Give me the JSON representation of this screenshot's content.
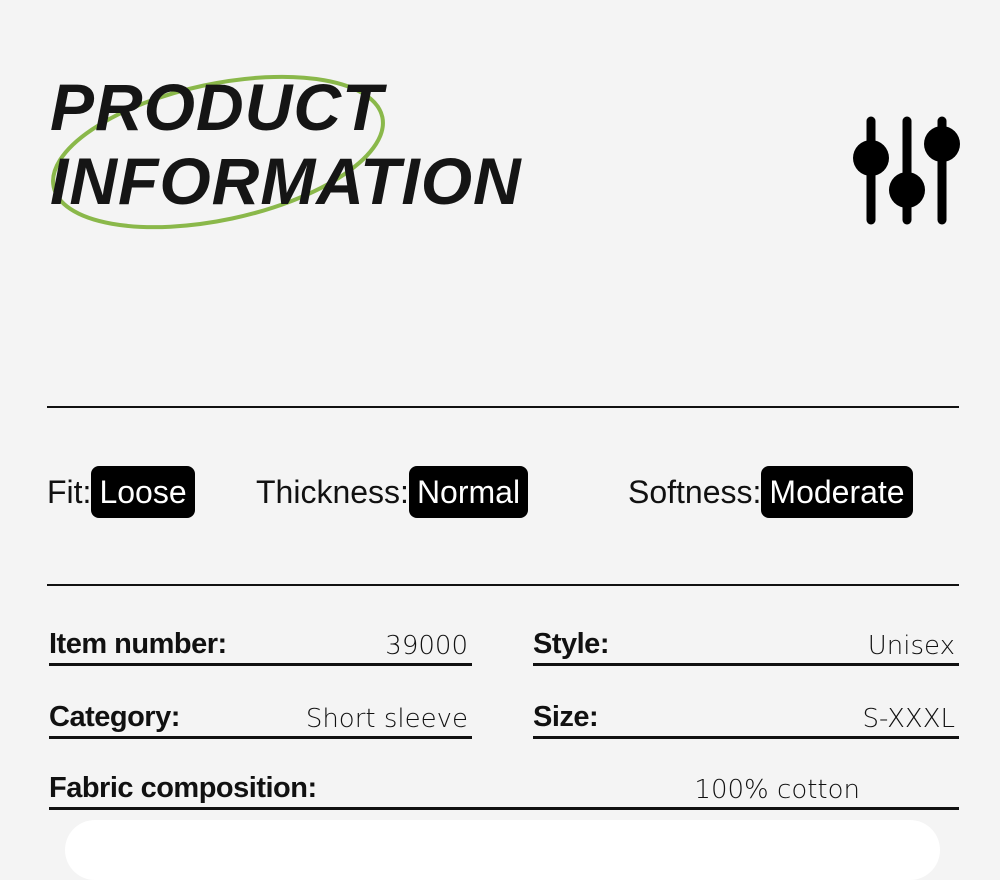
{
  "header": {
    "title_line1": "PRODUCT",
    "title_line2": "INFORMATION",
    "accent_color": "#8ab84a",
    "icon": "sliders-icon"
  },
  "attributes": [
    {
      "label": "Fit:",
      "value": "Loose"
    },
    {
      "label": "Thickness:",
      "value": "Normal"
    },
    {
      "label": "Softness:",
      "value": "Moderate"
    }
  ],
  "details": {
    "item_number": {
      "label": "Item number:",
      "value": "39000"
    },
    "style": {
      "label": "Style:",
      "value": "Unisex"
    },
    "category": {
      "label": "Category:",
      "value": "Short sleeve"
    },
    "size": {
      "label": "Size:",
      "value": "S-XXXL"
    },
    "fabric": {
      "label": "Fabric composition:",
      "value": "100% cotton"
    }
  }
}
